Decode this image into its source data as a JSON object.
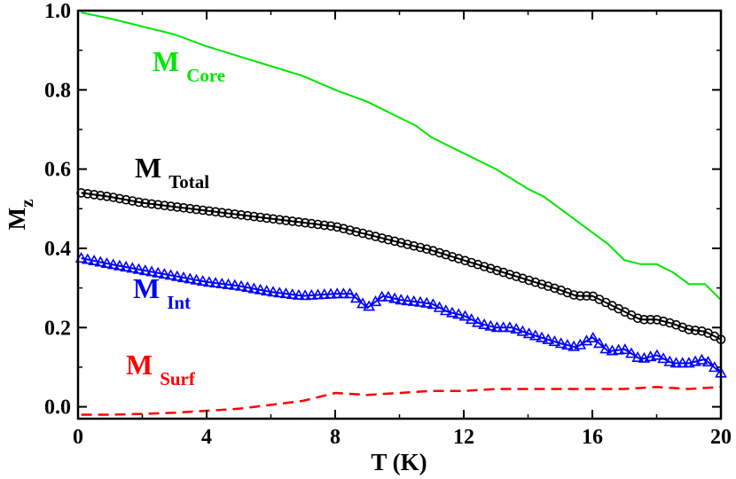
{
  "chart_data": {
    "type": "line",
    "xlabel": "T (K)",
    "ylabel_main": "M",
    "ylabel_sub": "z",
    "xlim": [
      0,
      20
    ],
    "ylim": [
      -0.03,
      1.0
    ],
    "xticks": [
      0,
      4,
      8,
      12,
      16,
      20
    ],
    "yticks": [
      0.0,
      0.2,
      0.4,
      0.6,
      0.8,
      1.0
    ],
    "xtick_labels": [
      "0",
      "4",
      "8",
      "12",
      "16",
      "20"
    ],
    "ytick_labels": [
      "0.0",
      "0.2",
      "0.4",
      "0.6",
      "0.8",
      "1.0"
    ],
    "grid": false,
    "series": [
      {
        "label_main": "M",
        "label_sub": "Core",
        "color": "#00e600",
        "style": "solid",
        "marker": "none",
        "x": [
          0.1,
          1,
          2,
          3,
          4,
          5,
          6,
          7,
          8,
          9,
          10,
          10.5,
          11,
          12,
          13,
          14,
          14.5,
          15,
          15.5,
          16,
          16.5,
          17,
          17.5,
          18,
          18.5,
          19,
          19.5,
          20
        ],
        "y": [
          0.995,
          0.98,
          0.96,
          0.94,
          0.91,
          0.885,
          0.86,
          0.835,
          0.8,
          0.77,
          0.73,
          0.71,
          0.68,
          0.64,
          0.6,
          0.55,
          0.53,
          0.5,
          0.47,
          0.44,
          0.41,
          0.37,
          0.36,
          0.36,
          0.34,
          0.31,
          0.31,
          0.27
        ]
      },
      {
        "label_main": "M",
        "label_sub": "Total",
        "color": "#000000",
        "style": "solid",
        "marker": "circle",
        "x": [
          0.1,
          1,
          2,
          3,
          4,
          5,
          6,
          7,
          8,
          9,
          10,
          11,
          12,
          13,
          14,
          15,
          15.5,
          16,
          16.5,
          17,
          17.5,
          18,
          18.5,
          19,
          19.5,
          20
        ],
        "y": [
          0.54,
          0.53,
          0.515,
          0.505,
          0.495,
          0.485,
          0.475,
          0.465,
          0.455,
          0.435,
          0.415,
          0.395,
          0.37,
          0.345,
          0.32,
          0.295,
          0.28,
          0.28,
          0.26,
          0.24,
          0.22,
          0.22,
          0.21,
          0.195,
          0.19,
          0.17
        ]
      },
      {
        "label_main": "M",
        "label_sub": "Int",
        "color": "#0000ff",
        "style": "solid",
        "marker": "triangle",
        "x": [
          0.1,
          1,
          2,
          3,
          4,
          5,
          6,
          7,
          8,
          8.5,
          9,
          9.5,
          10,
          11,
          11.5,
          12,
          12.5,
          13,
          13.5,
          14,
          15,
          15.5,
          16,
          16.5,
          17,
          17.5,
          18,
          18.5,
          19,
          19.5,
          20
        ],
        "y": [
          0.375,
          0.36,
          0.345,
          0.33,
          0.315,
          0.305,
          0.29,
          0.28,
          0.285,
          0.285,
          0.25,
          0.28,
          0.27,
          0.26,
          0.24,
          0.23,
          0.21,
          0.2,
          0.2,
          0.185,
          0.16,
          0.15,
          0.175,
          0.14,
          0.145,
          0.12,
          0.13,
          0.11,
          0.11,
          0.12,
          0.085
        ]
      },
      {
        "label_main": "M",
        "label_sub": "Surf",
        "color": "#ff0000",
        "style": "dashed",
        "marker": "none",
        "x": [
          0.1,
          1,
          2,
          3,
          4,
          5,
          6,
          7,
          8,
          9,
          10,
          11,
          12,
          13,
          14,
          15,
          16,
          17,
          18,
          19,
          20
        ],
        "y": [
          -0.02,
          -0.02,
          -0.018,
          -0.015,
          -0.01,
          -0.005,
          0.005,
          0.015,
          0.035,
          0.03,
          0.035,
          0.04,
          0.04,
          0.045,
          0.045,
          0.045,
          0.045,
          0.045,
          0.05,
          0.045,
          0.05
        ]
      }
    ]
  }
}
